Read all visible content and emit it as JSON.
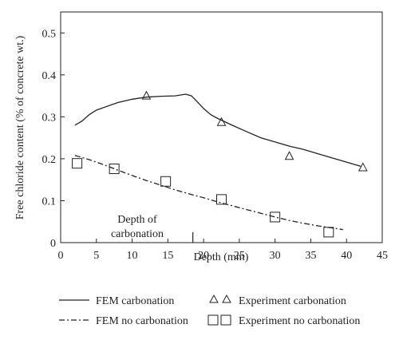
{
  "chart_data": {
    "type": "line",
    "xlabel": "Depth (mm)",
    "ylabel": "Free chloride content (% of concrete wt.)",
    "xlim": [
      0,
      45
    ],
    "ylim": [
      0,
      0.55
    ],
    "x_ticks": [
      0,
      5,
      10,
      15,
      20,
      25,
      30,
      35,
      40,
      45
    ],
    "y_ticks": [
      0,
      0.1,
      0.2,
      0.3,
      0.4,
      0.5
    ],
    "grid": false,
    "legend_position": "bottom",
    "annotation": {
      "text_lines": [
        "Depth of",
        "carbonation"
      ],
      "marker_x": 18.5
    },
    "series": [
      {
        "name": "FEM carbonation",
        "style": "solid-line",
        "color": "#222222",
        "points": [
          [
            2,
            0.28
          ],
          [
            3,
            0.29
          ],
          [
            4,
            0.305
          ],
          [
            5,
            0.316
          ],
          [
            6,
            0.322
          ],
          [
            8,
            0.334
          ],
          [
            10,
            0.342
          ],
          [
            12,
            0.347
          ],
          [
            14,
            0.349
          ],
          [
            16,
            0.35
          ],
          [
            17.5,
            0.354
          ],
          [
            18.3,
            0.35
          ],
          [
            19,
            0.338
          ],
          [
            20,
            0.32
          ],
          [
            21,
            0.305
          ],
          [
            22,
            0.296
          ],
          [
            24,
            0.28
          ],
          [
            26,
            0.265
          ],
          [
            28,
            0.25
          ],
          [
            30,
            0.24
          ],
          [
            32,
            0.23
          ],
          [
            34,
            0.222
          ],
          [
            36,
            0.212
          ],
          [
            38,
            0.202
          ],
          [
            40,
            0.192
          ],
          [
            42,
            0.182
          ]
        ]
      },
      {
        "name": "FEM no carbonation",
        "style": "dash-dot-line",
        "color": "#222222",
        "points": [
          [
            2,
            0.208
          ],
          [
            4,
            0.198
          ],
          [
            6,
            0.186
          ],
          [
            8,
            0.173
          ],
          [
            10,
            0.16
          ],
          [
            12,
            0.148
          ],
          [
            14,
            0.137
          ],
          [
            16,
            0.126
          ],
          [
            18,
            0.116
          ],
          [
            20,
            0.107
          ],
          [
            22,
            0.097
          ],
          [
            24,
            0.088
          ],
          [
            26,
            0.079
          ],
          [
            28,
            0.07
          ],
          [
            30,
            0.061
          ],
          [
            32,
            0.053
          ],
          [
            34,
            0.046
          ],
          [
            36,
            0.04
          ],
          [
            38,
            0.035
          ],
          [
            39.5,
            0.031
          ]
        ]
      },
      {
        "name": "Experiment carbonation",
        "style": "triangle-marker",
        "color": "#222222",
        "points": [
          [
            12,
            0.35
          ],
          [
            22.5,
            0.287
          ],
          [
            32,
            0.206
          ],
          [
            42.3,
            0.179
          ]
        ]
      },
      {
        "name": "Experiment no carbonation",
        "style": "square-marker",
        "color": "#222222",
        "points": [
          [
            2.3,
            0.189
          ],
          [
            7.5,
            0.176
          ],
          [
            14.7,
            0.146
          ],
          [
            22.5,
            0.103
          ],
          [
            30,
            0.061
          ],
          [
            37.5,
            0.025
          ]
        ]
      }
    ]
  }
}
